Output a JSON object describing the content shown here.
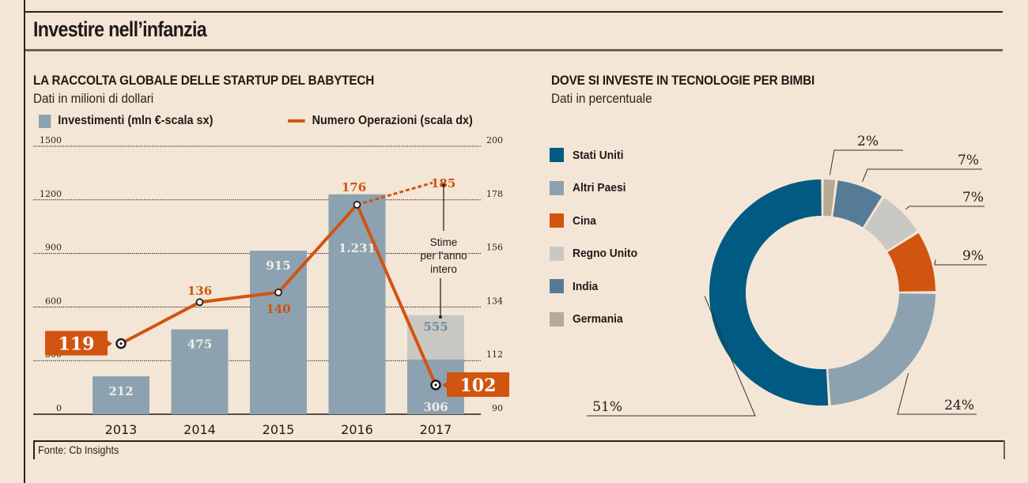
{
  "page": {
    "title": "Investire nell’infanzia",
    "source": "Fonte: Cb Insights"
  },
  "colors": {
    "background": "#f4e6d6",
    "bar": "#8ca2b0",
    "bar_estimate": "#c9c8c3",
    "line": "#d15411",
    "text": "#1e1a17"
  },
  "chart_data": [
    {
      "type": "bar",
      "title": "LA RACCOLTA GLOBALE DELLE STARTUP DEL BABYTECH",
      "subtitle": "Dati in milioni di dollari",
      "legend": [
        {
          "name": "Investimenti (mln €-scala sx)",
          "kind": "bar",
          "color": "#8ca2b0"
        },
        {
          "name": "Numero Operazioni (scala dx)",
          "kind": "line",
          "color": "#d15411"
        }
      ],
      "legend_position": "top",
      "categories": [
        "2013",
        "2014",
        "2015",
        "2016",
        "2017"
      ],
      "y_left": {
        "min": 0,
        "max": 1500,
        "ticks": [
          0,
          300,
          600,
          900,
          1200,
          1500
        ],
        "tick_labels": [
          "0",
          "300",
          "600",
          "900",
          "1200",
          "1500"
        ]
      },
      "y_right": {
        "min": 90,
        "max": 200,
        "ticks": [
          90,
          112,
          134,
          156,
          178,
          200
        ],
        "tick_labels": [
          "90",
          "112",
          "134",
          "156",
          "178",
          "200"
        ]
      },
      "grid": true,
      "series": [
        {
          "name": "Investimenti",
          "axis": "left",
          "type": "bar",
          "values": [
            212,
            475,
            915,
            1231,
            306
          ],
          "labels": [
            "212",
            "475",
            "915",
            "1.231",
            "306"
          ],
          "estimate": {
            "category": "2017",
            "value": 555,
            "label": "555"
          }
        },
        {
          "name": "Numero Operazioni",
          "axis": "right",
          "type": "line",
          "values": [
            119,
            136,
            140,
            176,
            102
          ],
          "labels": [
            "119",
            "136",
            "140",
            "176",
            "102"
          ],
          "highlighted": [
            "2013",
            "2017"
          ],
          "estimate": {
            "from": "2016",
            "to_category": "2017",
            "value": 185,
            "label": "185"
          }
        }
      ],
      "annotation": {
        "text_lines": [
          "Stime",
          "per l’anno",
          "intero"
        ]
      }
    },
    {
      "type": "pie",
      "variant": "donut",
      "title": "DOVE SI INVESTE IN TECNOLOGIE PER BIMBI",
      "subtitle": "Dati in percentuale",
      "legend_position": "left",
      "legend": [
        "Stati Uniti",
        "Altri Paesi",
        "Cina",
        "Regno Unito",
        "India",
        "Germania"
      ],
      "slices": [
        {
          "label": "Germania",
          "value": 2,
          "display": "2%",
          "color": "#b8a995"
        },
        {
          "label": "India",
          "value": 7,
          "display": "7%",
          "color": "#567b96"
        },
        {
          "label": "Regno Unito",
          "value": 7,
          "display": "7%",
          "color": "#c9c8c3"
        },
        {
          "label": "Cina",
          "value": 9,
          "display": "9%",
          "color": "#d15411"
        },
        {
          "label": "Altri Paesi",
          "value": 24,
          "display": "24%",
          "color": "#8ca2b0"
        },
        {
          "label": "Stati Uniti",
          "value": 51,
          "display": "51%",
          "color": "#005a82"
        }
      ],
      "legend_colors": {
        "Stati Uniti": "#005a82",
        "Altri Paesi": "#8ca2b0",
        "Cina": "#d15411",
        "Regno Unito": "#c9c8c3",
        "India": "#567b96",
        "Germania": "#b8a995"
      }
    }
  ]
}
